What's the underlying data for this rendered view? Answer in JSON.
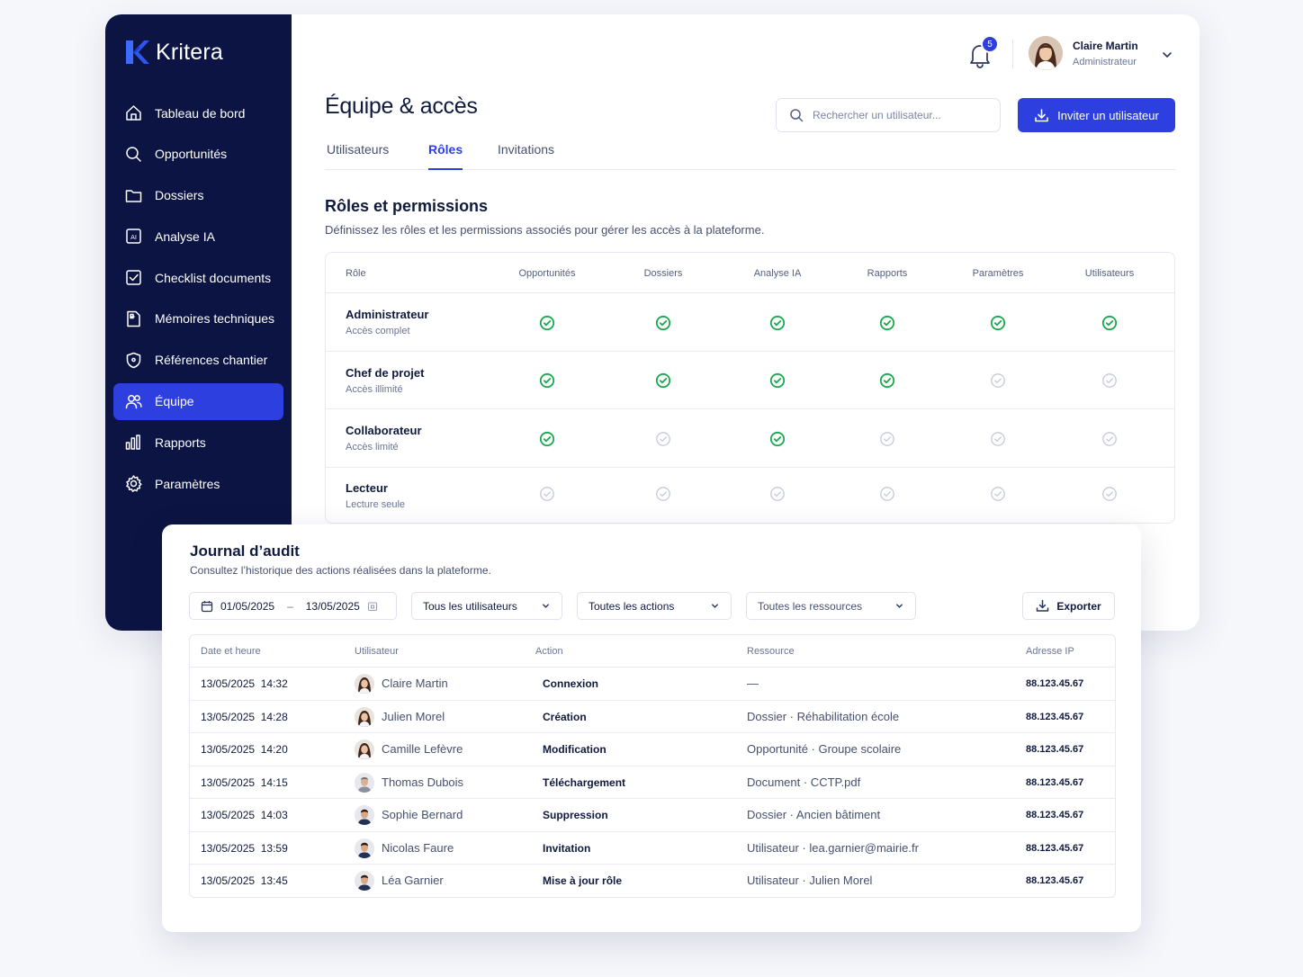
{
  "app": {
    "brand": "Kritera"
  },
  "sidebar": {
    "items": [
      {
        "label": "Tableau de bord",
        "icon": "home-icon"
      },
      {
        "label": "Opportunités",
        "icon": "search-icon"
      },
      {
        "label": "Dossiers",
        "icon": "folder-icon"
      },
      {
        "label": "Analyse IA",
        "icon": "ai-icon"
      },
      {
        "label": "Checklist documents",
        "icon": "checklist-icon"
      },
      {
        "label": "Mémoires techniques",
        "icon": "document-icon"
      },
      {
        "label": "Références chantier",
        "icon": "shield-icon"
      },
      {
        "label": "Équipe",
        "icon": "team-icon",
        "active": true
      },
      {
        "label": "Rapports",
        "icon": "bar-chart-icon"
      },
      {
        "label": "Paramètres",
        "icon": "gear-icon"
      }
    ]
  },
  "topbar": {
    "notifications": "5",
    "user_name": "Claire Martin",
    "user_role": "Administrateur"
  },
  "page": {
    "title": "Équipe & accès",
    "search_placeholder": "Rechercher un utilisateur...",
    "invite_label": "Inviter un utilisateur",
    "tabs": [
      {
        "label": "Utilisateurs"
      },
      {
        "label": "Rôles",
        "active": true
      },
      {
        "label": "Invitations"
      }
    ]
  },
  "roles": {
    "title": "Rôles et permissions",
    "description": "Définissez les rôles et les permissions associés pour gérer les accès à la plateforme.",
    "columns": [
      "Rôle",
      "Opportunités",
      "Dossiers",
      "Analyse IA",
      "Rapports",
      "Paramètres",
      "Utilisateurs"
    ],
    "rows": [
      {
        "name": "Administrateur",
        "sub": "Accès complet",
        "perms": [
          true,
          true,
          true,
          true,
          true,
          true
        ]
      },
      {
        "name": "Chef de projet",
        "sub": "Accès illimité",
        "perms": [
          true,
          true,
          true,
          true,
          false,
          false
        ]
      },
      {
        "name": "Collaborateur",
        "sub": "Accès limité",
        "perms": [
          true,
          false,
          true,
          false,
          false,
          false
        ]
      },
      {
        "name": "Lecteur",
        "sub": "Lecture seule",
        "perms": [
          false,
          false,
          false,
          false,
          false,
          false
        ]
      }
    ],
    "colors": {
      "granted": "#1aa84e",
      "denied": "#c4c9d6"
    }
  },
  "audit": {
    "title": "Journal d’audit",
    "description": "Consultez l’historique des actions réalisées dans la plateforme.",
    "date_from": "01/05/2025",
    "date_sep": "–",
    "date_to": "13/05/2025",
    "filter_users": "Tous les utilisateurs",
    "filter_actions": "Toutes les actions",
    "filter_resources": "Toutes les ressources",
    "export_label": "Exporter",
    "columns": [
      "Date et heure",
      "Utilisateur",
      "Action",
      "Ressource",
      "Adresse IP"
    ],
    "rows": [
      {
        "date": "13/05/2025  14:32",
        "user": "Claire Martin",
        "avatar": "female",
        "action": "Connexion",
        "resource": "—",
        "ip": "88.123.45.67"
      },
      {
        "date": "13/05/2025  14:28",
        "user": "Julien Morel",
        "avatar": "female",
        "action": "Création",
        "resource": "Dossier · Réhabilitation école",
        "ip": "88.123.45.67"
      },
      {
        "date": "13/05/2025  14:20",
        "user": "Camille Lefèvre",
        "avatar": "female",
        "action": "Modification",
        "resource": "Opportunité · Groupe scolaire",
        "ip": "88.123.45.67"
      },
      {
        "date": "13/05/2025  14:15",
        "user": "Thomas Dubois",
        "avatar": "male-grey",
        "action": "Téléchargement",
        "resource": "Document · CCTP.pdf",
        "ip": "88.123.45.67"
      },
      {
        "date": "13/05/2025  14:03",
        "user": "Sophie Bernard",
        "avatar": "male",
        "action": "Suppression",
        "resource": "Dossier · Ancien bâtiment",
        "ip": "88.123.45.67"
      },
      {
        "date": "13/05/2025  13:59",
        "user": "Nicolas Faure",
        "avatar": "male",
        "action": "Invitation",
        "resource": "Utilisateur · lea.garnier@mairie.fr",
        "ip": "88.123.45.67"
      },
      {
        "date": "13/05/2025  13:45",
        "user": "Léa Garnier",
        "avatar": "male",
        "action": "Mise à jour rôle",
        "resource": "Utilisateur · Julien Morel",
        "ip": "88.123.45.67"
      }
    ]
  },
  "theme": {
    "sidebar_bg": "#0b1442",
    "accent": "#2e3fe0"
  }
}
